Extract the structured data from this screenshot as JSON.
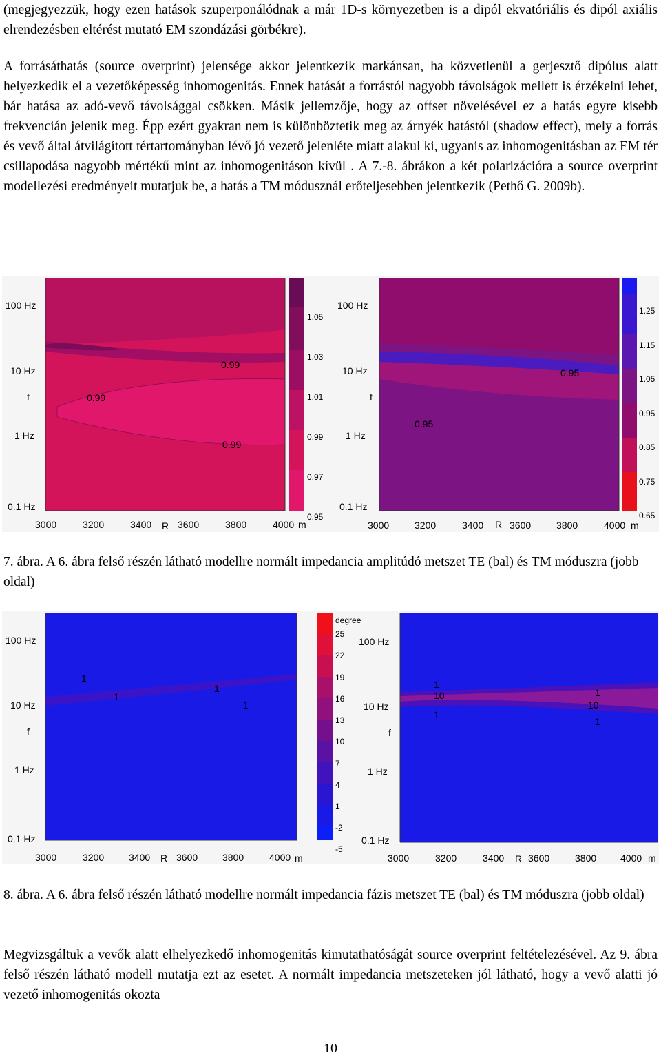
{
  "paragraphs": {
    "p1": "(megjegyezzük, hogy ezen  hatások szuperponálódnak a már 1D-s környezetben is  a dipól ekvatóriális és dipól axiális elrendezésben eltérést mutató EM szondázási görbékre).",
    "p2": "A forrásáthatás (source overprint) jelensége akkor jelentkezik markánsan, ha közvetlenül a gerjesztő dipólus alatt helyezkedik el a vezetőképesség inhomogenitás. Ennek hatását a forrástól nagyobb távolságok mellett is érzékelni lehet, bár hatása az adó-vevő távolsággal csökken. Másik jellemzője, hogy az offset növelésével ez a hatás egyre kisebb frekvencián jelenik meg. Épp ezért gyakran nem is különböztetik meg az árnyék hatástól (shadow effect), mely a forrás és vevő által átvilágított  tértartományban lévő jó vezető jelenléte miatt alakul ki, ugyanis az inhomogenitásban az EM tér csillapodása nagyobb mértékű mint az inhomogenitáson kívül . A 7.-8. ábrákon a két polarizációra a source overprint modellezési eredményeit mutatjuk be, a hatás a TM módusznál erőteljesebben jelentkezik (Pethő G. 2009b).",
    "p3": "Megvizsgáltuk a vevők alatt elhelyezkedő inhomogenitás kimutathatóságát source overprint feltételezésével. Az 9. ábra felső részén látható modell mutatja ezt az esetet. A normált impedancia metszeteken jól látható, hogy a vevő alatti jó vezető inhomogenitás okozta"
  },
  "captions": {
    "fig7": "7. ábra. A 6. ábra felső részén látható modellre normált impedancia amplitúdó metszet TE (bal) és TM móduszra (jobb oldal)",
    "fig8": "8. ábra. A 6. ábra felső részén látható modellre normált impedancia fázis metszet TE (bal) és TM móduszra (jobb oldal)"
  },
  "page_number": "10",
  "axes": {
    "y_ticks": [
      "100 Hz",
      "10 Hz",
      "f",
      "1 Hz",
      "0.1 Hz"
    ],
    "x_ticks": [
      "3000",
      "3200",
      "3400",
      "R",
      "3600",
      "3800",
      "4000",
      "m"
    ]
  },
  "fig7_left": {
    "colorbar_labels": [
      "1.05",
      "1.03",
      "1.01",
      "0.99",
      "0.97",
      "0.95"
    ],
    "contour_labels": [
      "0.99",
      "0.99",
      "0.99"
    ],
    "colors": {
      "background": "#d4145a",
      "top": "#c01460",
      "band": "#9e0f63",
      "lobe": "#e0176b"
    }
  },
  "fig7_right": {
    "colorbar_labels": [
      "1.25",
      "1.15",
      "1.05",
      "0.95",
      "0.85",
      "0.75",
      "0.65"
    ],
    "contour_labels": [
      "0.95",
      "0.95"
    ],
    "colors": {
      "background": "#7c1484",
      "top": "#900d6e",
      "band": "#4a1cc0"
    }
  },
  "fig8_left": {
    "colorbar_title": "degree",
    "colorbar_labels": [
      "25",
      "22",
      "19",
      "16",
      "13",
      "10",
      "7",
      "4",
      "1",
      "-2",
      "-5"
    ],
    "contour_labels": [
      "1",
      "1",
      "1",
      "1"
    ],
    "colors": {
      "background": "#1a1ae6",
      "band": "#3a14c8"
    }
  },
  "fig8_right": {
    "contour_labels": [
      "1",
      "10",
      "1",
      "1",
      "10",
      "1"
    ],
    "colors": {
      "background": "#1a1ae6",
      "band": "#8a1a9a"
    }
  }
}
